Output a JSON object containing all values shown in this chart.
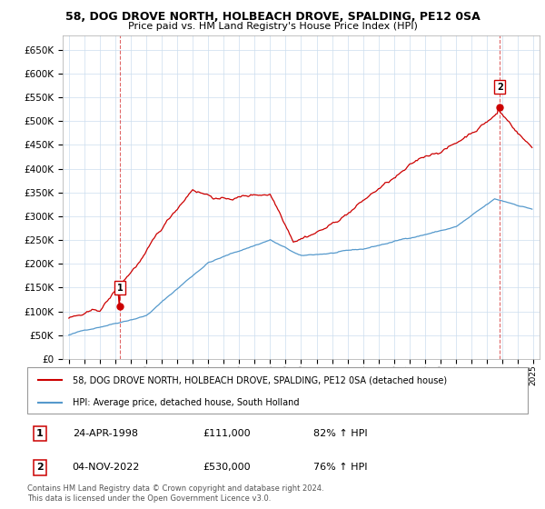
{
  "title": "58, DOG DROVE NORTH, HOLBEACH DROVE, SPALDING, PE12 0SA",
  "subtitle": "Price paid vs. HM Land Registry's House Price Index (HPI)",
  "red_label": "58, DOG DROVE NORTH, HOLBEACH DROVE, SPALDING, PE12 0SA (detached house)",
  "blue_label": "HPI: Average price, detached house, South Holland",
  "annotation1_date": "24-APR-1998",
  "annotation1_price": "£111,000",
  "annotation1_hpi": "82% ↑ HPI",
  "annotation2_date": "04-NOV-2022",
  "annotation2_price": "£530,000",
  "annotation2_hpi": "76% ↑ HPI",
  "footer": "Contains HM Land Registry data © Crown copyright and database right 2024.\nThis data is licensed under the Open Government Licence v3.0.",
  "ylim": [
    0,
    680000
  ],
  "yticks": [
    0,
    50000,
    100000,
    150000,
    200000,
    250000,
    300000,
    350000,
    400000,
    450000,
    500000,
    550000,
    600000,
    650000
  ],
  "red_color": "#cc0000",
  "blue_color": "#5599cc",
  "grid_color": "#ccddee",
  "yr1": 1998.29,
  "yr2": 2022.83,
  "red_val1": 111000,
  "red_val2": 530000
}
